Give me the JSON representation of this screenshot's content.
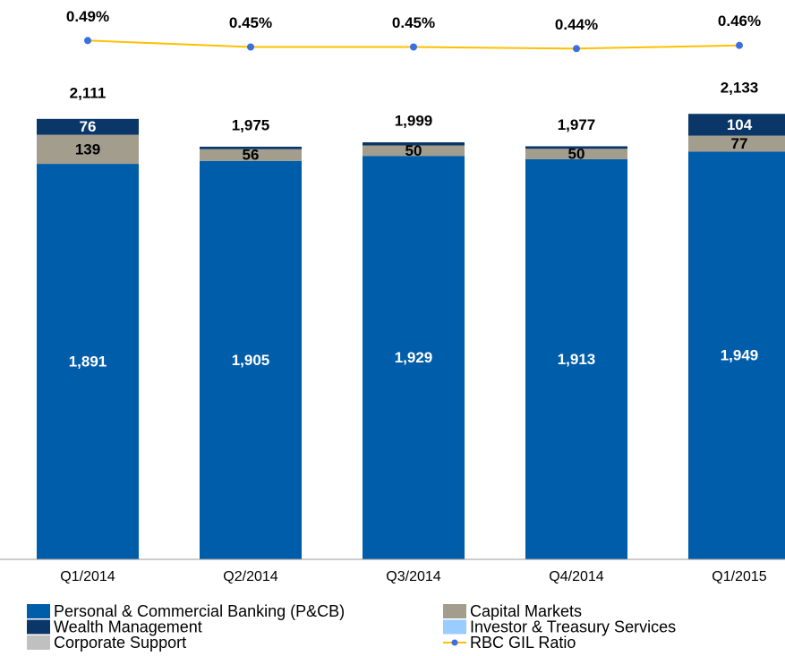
{
  "chart_data": {
    "type": "bar",
    "stacked": true,
    "categories": [
      "Q1/2014",
      "Q2/2014",
      "Q3/2014",
      "Q4/2014",
      "Q1/2015"
    ],
    "ylim": [
      0,
      2546
    ],
    "y2lim": [
      -2.73,
      0.575
    ],
    "series": [
      {
        "name": "Personal & Commercial Banking (P&CB)",
        "color": "#005daa",
        "label_color": "#ffffff",
        "values": [
          1891,
          1905,
          1929,
          1913,
          1949
        ],
        "value_labels": [
          "1,891",
          "1,905",
          "1,929",
          "1,913",
          "1,949"
        ]
      },
      {
        "name": "Capital Markets",
        "color": "#a39d8e",
        "label_color": "#000000",
        "values": [
          139,
          56,
          50,
          50,
          77
        ],
        "value_labels": [
          "139",
          "56",
          "50",
          "50",
          "77"
        ]
      },
      {
        "name": "Wealth Management",
        "color": "#0b3768",
        "label_color": "#ffffff",
        "values": [
          76,
          12,
          15,
          12,
          104
        ],
        "value_labels": [
          "76",
          null,
          null,
          null,
          "104"
        ]
      },
      {
        "name": "Investor & Treasury Services",
        "color": "#99ccff",
        "values": [
          null,
          null,
          null,
          null,
          null
        ]
      },
      {
        "name": "Corporate Support",
        "color": "#c0c0c0",
        "values": [
          null,
          null,
          null,
          null,
          null
        ]
      },
      {
        "name": "RBC GIL Ratio",
        "type": "line",
        "axis": "y2",
        "color": "#ffc000",
        "marker_color": "#3b6fe0",
        "values": [
          0.49,
          0.45,
          0.45,
          0.44,
          0.46
        ],
        "value_labels": [
          "0.49%",
          "0.45%",
          "0.45%",
          "0.44%",
          "0.46%"
        ]
      }
    ],
    "totals": {
      "values": [
        2111,
        1975,
        1999,
        1977,
        2133
      ],
      "value_labels": [
        "2,111",
        "1,975",
        "1,999",
        "1,977",
        "2,133"
      ]
    }
  }
}
